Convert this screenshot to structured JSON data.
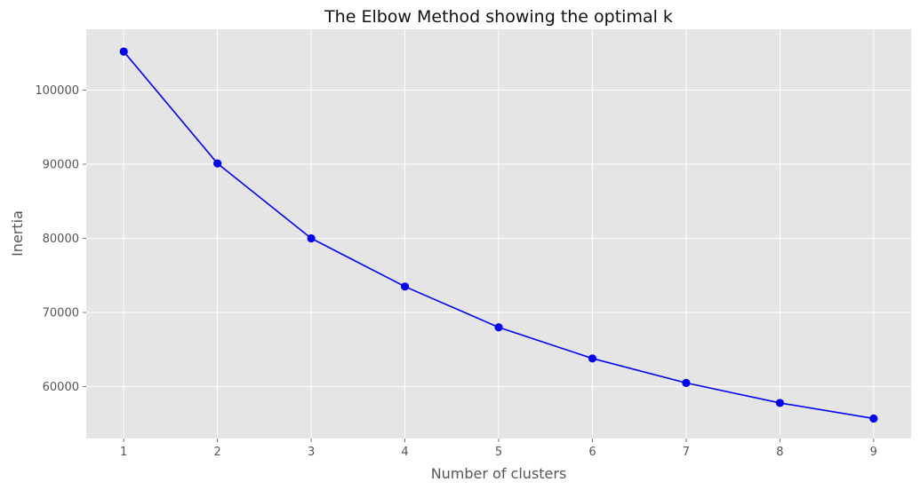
{
  "chart_data": {
    "type": "line",
    "title": "The Elbow Method showing the optimal k",
    "xlabel": "Number of clusters",
    "ylabel": "Inertia",
    "x": [
      1,
      2,
      3,
      4,
      5,
      6,
      7,
      8,
      9
    ],
    "series": [
      {
        "values": [
          105200,
          90100,
          80000,
          73500,
          68000,
          63800,
          60500,
          57800,
          55700
        ],
        "color": "#0000ff",
        "marker": "circle"
      }
    ],
    "xlim": [
      0.6,
      9.4
    ],
    "ylim": [
      53000,
      108200
    ],
    "xticks": [
      1,
      2,
      3,
      4,
      5,
      6,
      7,
      8,
      9
    ],
    "xtick_labels": [
      "1",
      "2",
      "3",
      "4",
      "5",
      "6",
      "7",
      "8",
      "9"
    ],
    "yticks": [
      60000,
      70000,
      80000,
      90000,
      100000
    ],
    "ytick_labels": [
      "60000",
      "70000",
      "80000",
      "90000",
      "100000"
    ],
    "grid": true,
    "plot_background": "#e5e5e5",
    "grid_color": "#ffffff"
  }
}
